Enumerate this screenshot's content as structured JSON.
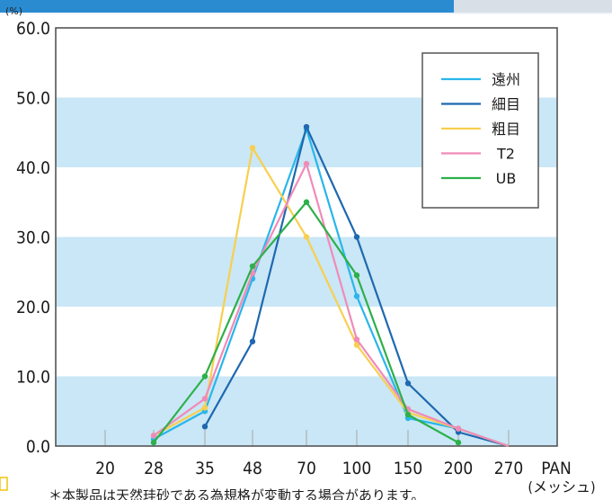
{
  "chart_data": {
    "type": "line",
    "ylabel": "(%)",
    "xlabel": "PAN",
    "x_unit": "(メッシュ)",
    "categories": [
      "20",
      "28",
      "35",
      "48",
      "70",
      "100",
      "150",
      "200",
      "270"
    ],
    "ylim": [
      0,
      60
    ],
    "yticks": [
      "0.0",
      "10.0",
      "20.0",
      "30.0",
      "40.0",
      "50.0",
      "60.0"
    ],
    "banded_background": true,
    "legend_position": "top-right",
    "series": [
      {
        "name": "遠州",
        "color": "#29b6ea",
        "values": [
          null,
          1.0,
          5.0,
          24.0,
          45.5,
          21.5,
          4.0,
          2.5,
          0.0
        ]
      },
      {
        "name": "細目",
        "color": "#1f68b0",
        "values": [
          null,
          null,
          2.8,
          15.0,
          45.8,
          30.0,
          9.0,
          2.0,
          0.0
        ]
      },
      {
        "name": "粗目",
        "color": "#f8cf4f",
        "values": [
          null,
          1.5,
          5.5,
          42.8,
          30.0,
          14.5,
          4.8,
          2.5,
          0.0
        ]
      },
      {
        "name": "T2",
        "color": "#f08bb8",
        "values": [
          null,
          1.5,
          6.8,
          24.8,
          40.5,
          15.3,
          5.3,
          2.5,
          0.0
        ]
      },
      {
        "name": "UB",
        "color": "#2db04a",
        "values": [
          null,
          0.5,
          10.0,
          25.8,
          35.0,
          24.5,
          4.5,
          0.5,
          null
        ]
      }
    ]
  },
  "footnote": "＊本製品は天然珪砂である為規格が変動する場合があります。"
}
